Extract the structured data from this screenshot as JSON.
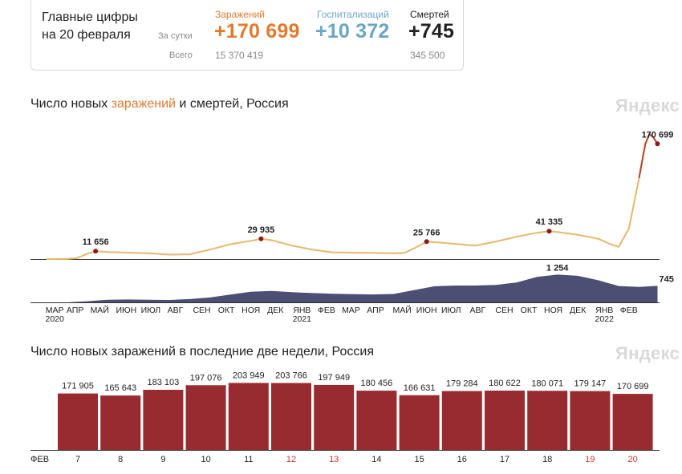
{
  "summary": {
    "title": "Главные цифры на 20 февраля",
    "row_day_label": "За сутки",
    "row_total_label": "Всего",
    "infections": {
      "label": "Заражений",
      "day": "+170 699",
      "total": "15 370 419",
      "color": "#e27a2e"
    },
    "hospitalizations": {
      "label": "Госпитализаций",
      "day": "+10 372",
      "color": "#6aa6c4"
    },
    "deaths": {
      "label": "Смертей",
      "day": "+745",
      "total": "345 500",
      "color": "#222222"
    }
  },
  "chart1": {
    "title_pre": "Число новых ",
    "title_inf": "заражений",
    "title_mid": " и ",
    "title_deaths": "смертей",
    "title_post": ", Россия",
    "logo": "Яндекс"
  },
  "chart2": {
    "title": "Число новых заражений в последние две недели, Россия",
    "logo": "Яндекс"
  },
  "chart_data": [
    {
      "type": "line",
      "title": "Число новых заражений и смертей, Россия",
      "series": [
        {
          "name": "Заражения",
          "color": "#e8b76c",
          "points": [
            [
              0,
              0
            ],
            [
              1,
              150
            ],
            [
              1.5,
              1500
            ],
            [
              2,
              8000
            ],
            [
              2.4,
              11656
            ],
            [
              3,
              10500
            ],
            [
              4,
              9500
            ],
            [
              5,
              8500
            ],
            [
              6,
              6500
            ],
            [
              7,
              7000
            ],
            [
              8,
              14000
            ],
            [
              9,
              22000
            ],
            [
              10,
              27000
            ],
            [
              10.5,
              29935
            ],
            [
              11,
              28000
            ],
            [
              12,
              20000
            ],
            [
              13,
              14000
            ],
            [
              14,
              10000
            ],
            [
              15,
              9500
            ],
            [
              16,
              9000
            ],
            [
              17,
              8500
            ],
            [
              17.5,
              9000
            ],
            [
              18,
              16000
            ],
            [
              18.6,
              25766
            ],
            [
              19,
              25000
            ],
            [
              20,
              22500
            ],
            [
              21,
              20000
            ],
            [
              22,
              26000
            ],
            [
              23,
              33000
            ],
            [
              24,
              39000
            ],
            [
              24.6,
              41335
            ],
            [
              25,
              40000
            ],
            [
              26,
              36000
            ],
            [
              27,
              30000
            ],
            [
              27.6,
              22000
            ],
            [
              28,
              18000
            ],
            [
              28.5,
              45000
            ],
            [
              29,
              120000
            ],
            [
              29.3,
              170000
            ],
            [
              29.5,
              185000
            ],
            [
              29.7,
              180000
            ],
            [
              29.9,
              170699
            ]
          ]
        },
        {
          "name": "Смерти",
          "color": "#4b4f73",
          "points": [
            [
              0,
              0
            ],
            [
              1,
              0
            ],
            [
              2,
              50
            ],
            [
              3,
              120
            ],
            [
              4,
              130
            ],
            [
              5,
              120
            ],
            [
              6,
              110
            ],
            [
              7,
              150
            ],
            [
              8,
              220
            ],
            [
              9,
              350
            ],
            [
              10,
              480
            ],
            [
              11,
              520
            ],
            [
              12,
              460
            ],
            [
              13,
              420
            ],
            [
              14,
              390
            ],
            [
              15,
              370
            ],
            [
              16,
              360
            ],
            [
              17,
              380
            ],
            [
              18,
              560
            ],
            [
              19,
              730
            ],
            [
              20,
              760
            ],
            [
              21,
              760
            ],
            [
              22,
              790
            ],
            [
              23,
              900
            ],
            [
              24,
              1150
            ],
            [
              25,
              1254
            ],
            [
              26,
              1200
            ],
            [
              27,
              1000
            ],
            [
              28,
              740
            ],
            [
              29,
              700
            ],
            [
              29.9,
              745
            ]
          ]
        }
      ],
      "annotations": [
        {
          "label": "11 656",
          "x": 2.4,
          "y": 11656,
          "series": "Заражения"
        },
        {
          "label": "29 935",
          "x": 10.5,
          "y": 29935,
          "series": "Заражения"
        },
        {
          "label": "25 766",
          "x": 18.6,
          "y": 25766,
          "series": "Заражения"
        },
        {
          "label": "41 335",
          "x": 24.6,
          "y": 41335,
          "series": "Заражения"
        },
        {
          "label": "170 699",
          "x": 29.9,
          "y": 170699,
          "series": "Заражения"
        },
        {
          "label": "1 254",
          "x": 25,
          "y": 1254,
          "series": "Смерти"
        },
        {
          "label": "745",
          "x": 29.9,
          "y": 745,
          "series": "Смерти"
        }
      ],
      "ylim_infections": [
        0,
        190000
      ],
      "ylim_deaths": [
        0,
        1450
      ],
      "xticks": [
        {
          "label": "МАР",
          "x": 0.4
        },
        {
          "label": "АПР",
          "x": 1.4
        },
        {
          "label": "МАЙ",
          "x": 2.6
        },
        {
          "label": "ИЮН",
          "x": 3.9
        },
        {
          "label": "ИЮЛ",
          "x": 5.1
        },
        {
          "label": "АВГ",
          "x": 6.3
        },
        {
          "label": "СЕН",
          "x": 7.6
        },
        {
          "label": "ОКТ",
          "x": 8.8
        },
        {
          "label": "НОЯ",
          "x": 10.0
        },
        {
          "label": "ДЕК",
          "x": 11.2
        },
        {
          "label": "ЯНВ",
          "x": 12.5
        },
        {
          "label": "ФЕВ",
          "x": 13.7
        },
        {
          "label": "МАР",
          "x": 14.9
        },
        {
          "label": "АПР",
          "x": 16.1
        },
        {
          "label": "МАЙ",
          "x": 17.4
        },
        {
          "label": "ИЮН",
          "x": 18.6
        },
        {
          "label": "ИЮЛ",
          "x": 19.8
        },
        {
          "label": "АВГ",
          "x": 21.1
        },
        {
          "label": "СЕН",
          "x": 22.4
        },
        {
          "label": "ОКТ",
          "x": 23.6
        },
        {
          "label": "НОЯ",
          "x": 24.8
        },
        {
          "label": "ДЕК",
          "x": 26.0
        },
        {
          "label": "ЯНВ",
          "x": 27.3
        },
        {
          "label": "ФЕВ",
          "x": 28.5
        }
      ],
      "year_labels": [
        {
          "label": "2020",
          "x": 0.4
        },
        {
          "label": "2021",
          "x": 12.5
        },
        {
          "label": "2022",
          "x": 27.3
        }
      ],
      "xlim": [
        0,
        30
      ]
    },
    {
      "type": "bar",
      "title": "Число новых заражений в последние две недели, Россия",
      "month_label": "ФЕВ",
      "categories": [
        "7",
        "8",
        "9",
        "10",
        "11",
        "12",
        "13",
        "14",
        "15",
        "16",
        "17",
        "18",
        "19",
        "20"
      ],
      "weekend": [
        false,
        false,
        false,
        false,
        false,
        true,
        true,
        false,
        false,
        false,
        false,
        false,
        true,
        true
      ],
      "values": [
        171905,
        165643,
        183103,
        197076,
        203949,
        203766,
        197949,
        180456,
        166631,
        179284,
        180622,
        180071,
        179147,
        170699
      ],
      "value_labels": [
        "171 905",
        "165 643",
        "183 103",
        "197 076",
        "203 949",
        "203 766",
        "197 949",
        "180 456",
        "166 631",
        "179 284",
        "180 622",
        "180 071",
        "179 147",
        "170 699"
      ],
      "color": "#972b30",
      "ylim": [
        0,
        210000
      ]
    }
  ]
}
